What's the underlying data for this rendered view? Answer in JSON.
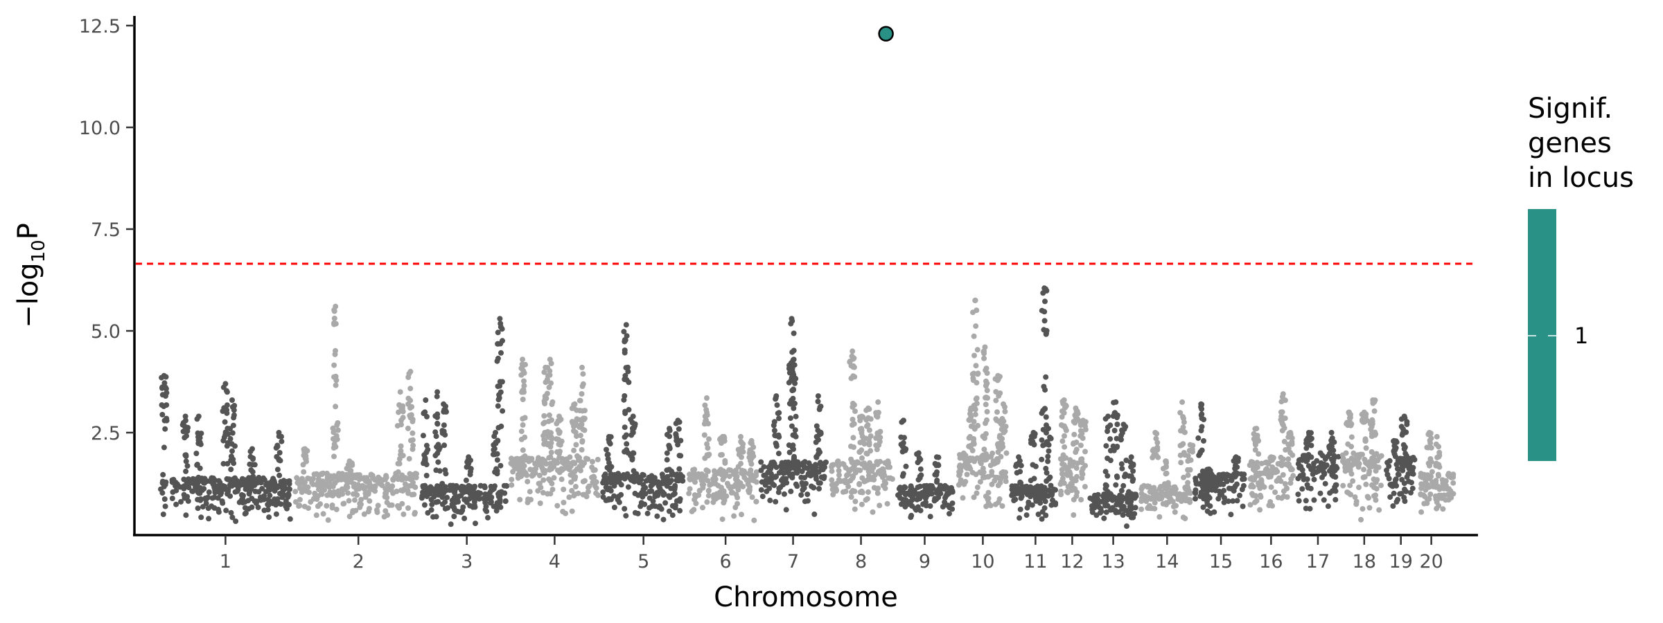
{
  "chart_data": {
    "type": "scatter",
    "subtype": "manhattan",
    "xlabel": "Chromosome",
    "ylabel": "−log10P",
    "ylabel_parts": {
      "prefix": "−log",
      "sub": "10",
      "suffix": "P"
    },
    "ylim": [
      0,
      12.75
    ],
    "yticks": [
      2.5,
      5.0,
      7.5,
      10.0,
      12.5
    ],
    "ytick_labels": [
      "2.5",
      "5.0",
      "7.5",
      "10.0",
      "12.5"
    ],
    "grid": false,
    "significance_threshold": 6.65,
    "threshold_color": "#ff0000",
    "colors": {
      "odd": "#545454",
      "even": "#a9a9a9",
      "highlight": "#2a9187"
    },
    "chromosomes": [
      {
        "label": "1",
        "length": 124,
        "tick": 0.5,
        "base": 1.4,
        "peaks": [
          [
            0.04,
            3.9
          ],
          [
            0.2,
            2.9
          ],
          [
            0.3,
            2.9
          ],
          [
            0.5,
            3.7
          ],
          [
            0.55,
            3.3
          ],
          [
            0.7,
            2.1
          ],
          [
            0.9,
            2.5
          ]
        ]
      },
      {
        "label": "2",
        "length": 118,
        "tick": 0.52,
        "base": 1.5,
        "peaks": [
          [
            0.1,
            2.1
          ],
          [
            0.34,
            5.6
          ],
          [
            0.45,
            1.8
          ],
          [
            0.85,
            3.5
          ],
          [
            0.93,
            4.0
          ]
        ]
      },
      {
        "label": "3",
        "length": 83,
        "tick": 0.53,
        "base": 1.2,
        "peaks": [
          [
            0.07,
            3.3
          ],
          [
            0.2,
            3.5
          ],
          [
            0.27,
            3.2
          ],
          [
            0.55,
            1.9
          ],
          [
            0.9,
            5.3
          ],
          [
            0.85,
            2.5
          ]
        ]
      },
      {
        "label": "4",
        "length": 85,
        "tick": 0.5,
        "base": 1.9,
        "peaks": [
          [
            0.15,
            4.3
          ],
          [
            0.4,
            4.1
          ],
          [
            0.45,
            4.3
          ],
          [
            0.55,
            2.9
          ],
          [
            0.72,
            3.2
          ],
          [
            0.8,
            4.1
          ]
        ]
      },
      {
        "label": "5",
        "length": 80,
        "tick": 0.5,
        "base": 1.5,
        "peaks": [
          [
            0.1,
            2.4
          ],
          [
            0.3,
            5.15
          ],
          [
            0.38,
            2.9
          ],
          [
            0.8,
            2.6
          ],
          [
            0.9,
            2.8
          ]
        ]
      },
      {
        "label": "6",
        "length": 67,
        "tick": 0.54,
        "base": 1.6,
        "peaks": [
          [
            0.28,
            3.35
          ],
          [
            0.5,
            2.4
          ],
          [
            0.75,
            2.4
          ],
          [
            0.9,
            2.3
          ]
        ]
      },
      {
        "label": "7",
        "length": 65,
        "tick": 0.49,
        "base": 1.8,
        "peaks": [
          [
            0.25,
            3.4
          ],
          [
            0.47,
            5.3
          ],
          [
            0.5,
            4.3
          ],
          [
            0.85,
            3.4
          ]
        ]
      },
      {
        "label": "8",
        "length": 61,
        "tick": 0.49,
        "base": 1.8,
        "peaks": [
          [
            0.36,
            4.5
          ],
          [
            0.5,
            2.9
          ],
          [
            0.75,
            3.25
          ],
          [
            0.6,
            3.1
          ]
        ]
      },
      {
        "label": "9",
        "length": 56,
        "tick": 0.5,
        "base": 1.2,
        "peaks": [
          [
            0.15,
            2.8
          ],
          [
            0.4,
            2.0
          ],
          [
            0.7,
            1.9
          ]
        ]
      },
      {
        "label": "10",
        "length": 50,
        "tick": 0.52,
        "base": 2.0,
        "peaks": [
          [
            0.3,
            3.1
          ],
          [
            0.38,
            5.75
          ],
          [
            0.56,
            4.6
          ],
          [
            0.8,
            3.9
          ],
          [
            0.9,
            3.2
          ]
        ]
      },
      {
        "label": "11",
        "length": 46,
        "tick": 0.54,
        "base": 1.2,
        "peaks": [
          [
            0.2,
            1.9
          ],
          [
            0.5,
            2.5
          ],
          [
            0.72,
            6.05
          ],
          [
            0.8,
            2.6
          ]
        ]
      },
      {
        "label": "12",
        "length": 27,
        "tick": 0.48,
        "base": 1.9,
        "peaks": [
          [
            0.2,
            3.3
          ],
          [
            0.6,
            3.1
          ],
          [
            0.85,
            2.8
          ]
        ]
      },
      {
        "label": "13",
        "length": 48,
        "tick": 0.5,
        "base": 1.0,
        "peaks": [
          [
            0.4,
            2.9
          ],
          [
            0.55,
            3.25
          ],
          [
            0.7,
            2.7
          ],
          [
            0.85,
            1.9
          ]
        ]
      },
      {
        "label": "14",
        "length": 50,
        "tick": 0.52,
        "base": 1.2,
        "peaks": [
          [
            0.3,
            2.5
          ],
          [
            0.5,
            1.8
          ],
          [
            0.8,
            3.25
          ],
          [
            0.95,
            2.2
          ]
        ]
      },
      {
        "label": "15",
        "length": 50,
        "tick": 0.52,
        "base": 1.5,
        "peaks": [
          [
            0.15,
            3.2
          ],
          [
            0.3,
            1.6
          ],
          [
            0.8,
            1.9
          ]
        ]
      },
      {
        "label": "16",
        "length": 45,
        "tick": 0.5,
        "base": 1.8,
        "peaks": [
          [
            0.2,
            2.6
          ],
          [
            0.5,
            1.9
          ],
          [
            0.75,
            3.45
          ],
          [
            0.9,
            2.5
          ]
        ]
      },
      {
        "label": "17",
        "length": 42,
        "tick": 0.5,
        "base": 2.0,
        "peaks": [
          [
            0.3,
            2.5
          ],
          [
            0.8,
            2.5
          ]
        ]
      },
      {
        "label": "18",
        "length": 40,
        "tick": 0.55,
        "base": 2.0,
        "peaks": [
          [
            0.2,
            3.0
          ],
          [
            0.55,
            3.0
          ],
          [
            0.75,
            3.3
          ]
        ]
      },
      {
        "label": "19",
        "length": 32,
        "tick": 0.5,
        "base": 1.9,
        "peaks": [
          [
            0.3,
            2.3
          ],
          [
            0.6,
            2.9
          ]
        ]
      },
      {
        "label": "20",
        "length": 35,
        "tick": 0.35,
        "base": 1.5,
        "peaks": [
          [
            0.3,
            2.5
          ],
          [
            0.5,
            2.4
          ]
        ]
      }
    ],
    "highlight_point": {
      "chromosome": "8",
      "position_fraction": 0.87,
      "value": 12.3,
      "genes_in_locus": 1
    },
    "legend": {
      "title_lines": [
        "Signif.",
        "genes",
        "in locus"
      ],
      "tick_label": "1",
      "color": "#2a9187",
      "placement": "right"
    }
  }
}
